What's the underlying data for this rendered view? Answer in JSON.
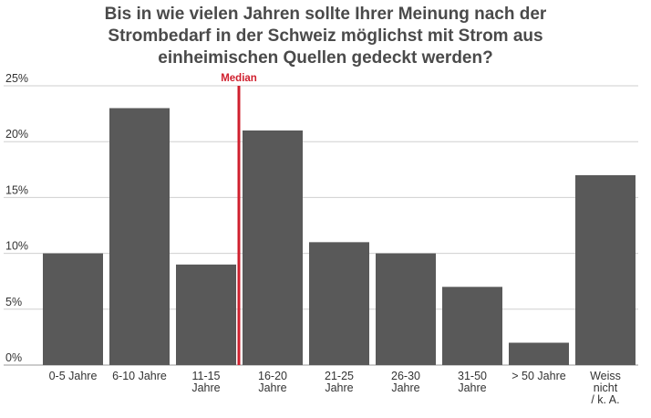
{
  "chart_data": {
    "type": "bar",
    "title": "Bis in wie vielen Jahren sollte Ihrer Meinung nach der\nStrombedarf in der Schweiz möglichst mit Strom aus\neinheimischen Quellen gedeckt werden?",
    "categories": [
      "0-5 Jahre",
      "6-10 Jahre",
      "11-15\nJahre",
      "16-20\nJahre",
      "21-25\nJahre",
      "26-30\nJahre",
      "31-50\nJahre",
      "> 50 Jahre",
      "Weiss\nnicht\n/ k. A."
    ],
    "values": [
      10,
      23,
      9,
      21,
      11,
      10,
      7,
      2,
      17
    ],
    "ylim": [
      0,
      25
    ],
    "yticks": [
      0,
      5,
      10,
      15,
      20,
      25
    ],
    "ytick_labels": [
      "0%",
      "5%",
      "10%",
      "15%",
      "20%",
      "25%"
    ],
    "grid": true,
    "median_label": "Median",
    "colors": {
      "bar": "#595959",
      "median": "#d0202e",
      "grid": "#cfcfcf",
      "title": "#4a4a4a"
    }
  }
}
